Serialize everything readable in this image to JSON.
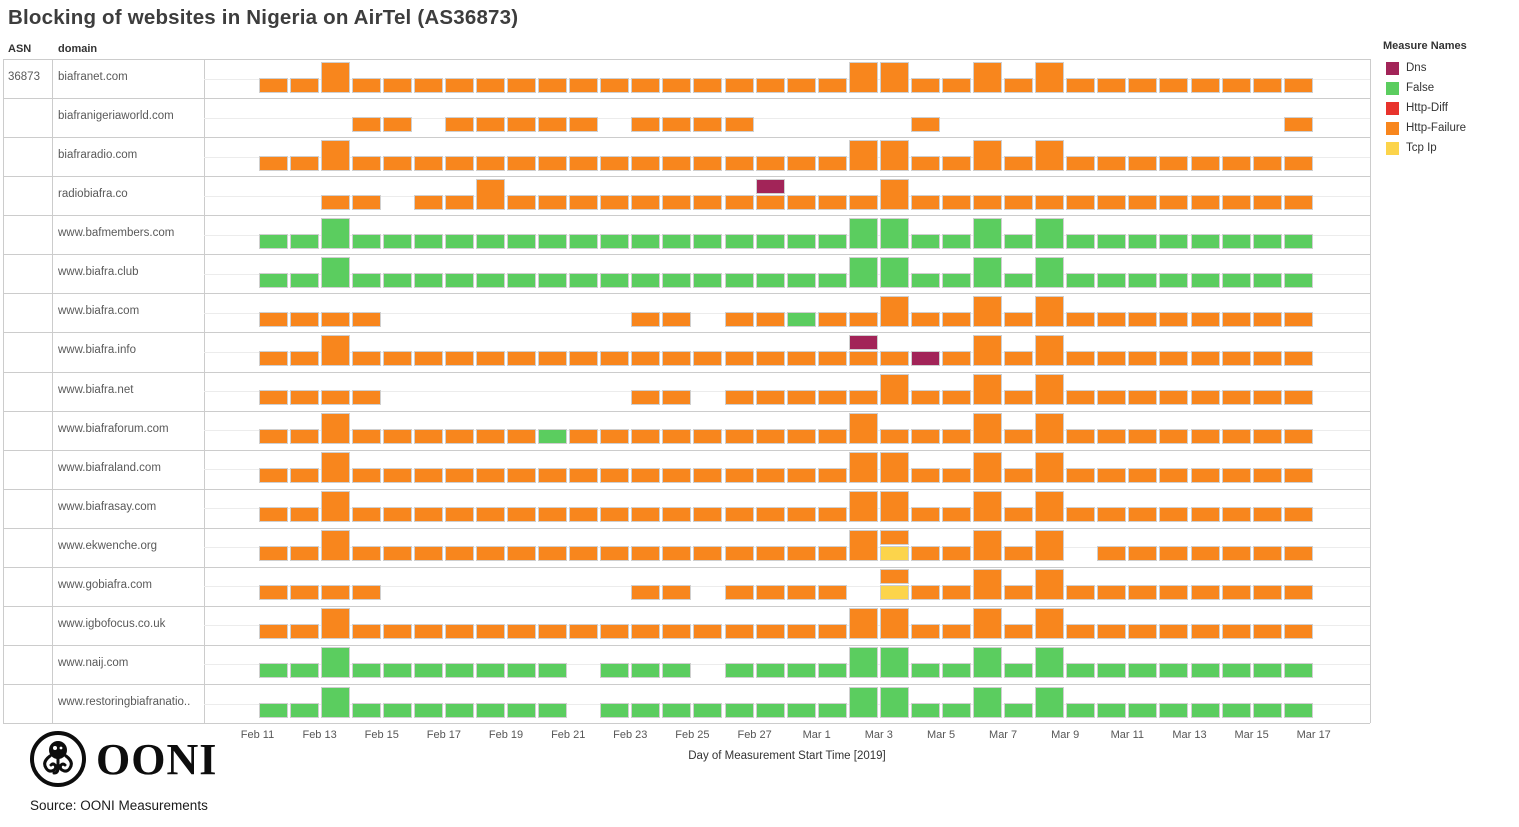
{
  "title": "Blocking of websites in Nigeria on AirTel (AS36873)",
  "table": {
    "asn_header": "ASN",
    "domain_header": "domain",
    "asn_value": "36873"
  },
  "legend": {
    "title": "Measure Names",
    "items": [
      {
        "label": "Dns",
        "color": "#a22458"
      },
      {
        "label": "False",
        "color": "#5bcd5f"
      },
      {
        "label": "Http-Diff",
        "color": "#e8332c"
      },
      {
        "label": "Http-Failure",
        "color": "#f8861d"
      },
      {
        "label": "Tcp Ip",
        "color": "#fcd44b"
      }
    ]
  },
  "axis": {
    "title": "Day of Measurement Start Time [2019]"
  },
  "footer": {
    "source": "Source: OONI Measurements",
    "logo_text": "OONI"
  },
  "chart_data": {
    "type": "bar",
    "subtype": "timeline-gantt-per-domain",
    "note": "Each row = domain; each day cell holds stacked measurement marks (height 1 = one measurement, height 2 = two). Colors keyed to Measure Names legend.",
    "colors": {
      "hf": "#f8861d",
      "false": "#5bcd5f",
      "dns": "#a22458",
      "tcp": "#fcd44b",
      "hd": "#e8332c"
    },
    "measure_by_color": {
      "hf": "Http-Failure",
      "false": "False",
      "dns": "Dns",
      "tcp": "Tcp Ip",
      "hd": "Http-Diff"
    },
    "x_dates": [
      "Feb 11",
      "Feb 12",
      "Feb 13",
      "Feb 14",
      "Feb 15",
      "Feb 16",
      "Feb 17",
      "Feb 18",
      "Feb 19",
      "Feb 20",
      "Feb 21",
      "Feb 22",
      "Feb 23",
      "Feb 24",
      "Feb 25",
      "Feb 26",
      "Feb 27",
      "Feb 28",
      "Mar 1",
      "Mar 2",
      "Mar 3",
      "Mar 4",
      "Mar 5",
      "Mar 6",
      "Mar 7",
      "Mar 8",
      "Mar 9",
      "Mar 10",
      "Mar 11",
      "Mar 12",
      "Mar 13",
      "Mar 14",
      "Mar 15",
      "Mar 16",
      "Mar 17"
    ],
    "tick_labels": [
      "Feb 11",
      "Feb 13",
      "Feb 15",
      "Feb 17",
      "Feb 19",
      "Feb 21",
      "Feb 23",
      "Feb 25",
      "Feb 27",
      "Mar 1",
      "Mar 3",
      "Mar 5",
      "Mar 7",
      "Mar 9",
      "Mar 11",
      "Mar 13",
      "Mar 15",
      "Mar 17"
    ],
    "rows": [
      {
        "asn": "36873",
        "domain": "biafranet.com",
        "color": "hf",
        "bars": [
          [
            0,
            33
          ]
        ],
        "tall": [
          2,
          19,
          20,
          23,
          25
        ],
        "over": [],
        "stack": []
      },
      {
        "domain": "biafranigeriaworld.com",
        "color": "hf",
        "bars": [
          [
            3,
            4
          ],
          [
            6,
            10
          ],
          [
            12,
            15
          ],
          [
            21,
            21
          ],
          [
            33,
            33
          ]
        ],
        "tall": [],
        "over": [],
        "stack": []
      },
      {
        "domain": "biafraradio.com",
        "color": "hf",
        "bars": [
          [
            0,
            33
          ]
        ],
        "tall": [
          2,
          19,
          20,
          23,
          25
        ],
        "over": [],
        "stack": []
      },
      {
        "domain": "radiobiafra.co",
        "color": "hf",
        "bars": [
          [
            2,
            3
          ],
          [
            5,
            33
          ]
        ],
        "tall": [
          7,
          20
        ],
        "over": [],
        "stack": [
          {
            "d": 16,
            "top": "dns",
            "bottom": "hf"
          }
        ]
      },
      {
        "domain": "www.bafmembers.com",
        "color": "false",
        "bars": [
          [
            0,
            33
          ]
        ],
        "tall": [
          2,
          19,
          20,
          23,
          25
        ],
        "over": [],
        "stack": []
      },
      {
        "domain": "www.biafra.club",
        "color": "false",
        "bars": [
          [
            0,
            33
          ]
        ],
        "tall": [
          2,
          19,
          20,
          23,
          25
        ],
        "over": [],
        "stack": []
      },
      {
        "domain": "www.biafra.com",
        "color": "hf",
        "bars": [
          [
            0,
            3
          ],
          [
            12,
            13
          ],
          [
            15,
            33
          ]
        ],
        "tall": [
          20,
          23,
          25
        ],
        "over": [
          {
            "d": 17,
            "c": "false"
          }
        ],
        "stack": []
      },
      {
        "domain": "www.biafra.info",
        "color": "hf",
        "bars": [
          [
            0,
            33
          ]
        ],
        "tall": [
          2,
          23,
          25
        ],
        "over": [
          {
            "d": 21,
            "c": "dns"
          }
        ],
        "stack": [
          {
            "d": 19,
            "top": "dns",
            "bottom": "hf"
          }
        ]
      },
      {
        "domain": "www.biafra.net",
        "color": "hf",
        "bars": [
          [
            0,
            3
          ],
          [
            12,
            13
          ],
          [
            15,
            33
          ]
        ],
        "tall": [
          20,
          23,
          25
        ],
        "over": [],
        "stack": []
      },
      {
        "domain": "www.biafraforum.com",
        "color": "hf",
        "bars": [
          [
            0,
            33
          ]
        ],
        "tall": [
          2,
          19,
          23,
          25
        ],
        "over": [
          {
            "d": 9,
            "c": "false"
          }
        ],
        "stack": []
      },
      {
        "domain": "www.biafraland.com",
        "color": "hf",
        "bars": [
          [
            0,
            33
          ]
        ],
        "tall": [
          2,
          19,
          20,
          23,
          25
        ],
        "over": [],
        "stack": []
      },
      {
        "domain": "www.biafrasay.com",
        "color": "hf",
        "bars": [
          [
            0,
            33
          ]
        ],
        "tall": [
          2,
          19,
          20,
          23,
          25
        ],
        "over": [],
        "stack": []
      },
      {
        "domain": "www.ekwenche.org",
        "color": "hf",
        "bars": [
          [
            0,
            25
          ],
          [
            27,
            33
          ]
        ],
        "tall": [
          2,
          19,
          23,
          25
        ],
        "over": [],
        "stack": [
          {
            "d": 20,
            "top": "hf",
            "bottom": "tcp"
          }
        ]
      },
      {
        "domain": "www.gobiafra.com",
        "color": "hf",
        "bars": [
          [
            0,
            3
          ],
          [
            12,
            13
          ],
          [
            15,
            18
          ],
          [
            21,
            33
          ]
        ],
        "tall": [
          23,
          25
        ],
        "over": [],
        "stack": [
          {
            "d": 20,
            "top": "hf",
            "bottom": "tcp"
          }
        ]
      },
      {
        "domain": "www.igbofocus.co.uk",
        "color": "hf",
        "bars": [
          [
            0,
            33
          ]
        ],
        "tall": [
          2,
          19,
          20,
          23,
          25
        ],
        "over": [],
        "stack": []
      },
      {
        "domain": "www.naij.com",
        "color": "false",
        "bars": [
          [
            0,
            9
          ],
          [
            11,
            13
          ],
          [
            15,
            33
          ]
        ],
        "tall": [
          2,
          19,
          20,
          23,
          25
        ],
        "over": [],
        "stack": []
      },
      {
        "domain": "www.restoringbiafranatio..",
        "color": "false",
        "bars": [
          [
            0,
            9
          ],
          [
            11,
            33
          ]
        ],
        "tall": [
          2,
          19,
          20,
          23,
          25
        ],
        "over": [],
        "stack": []
      }
    ]
  }
}
